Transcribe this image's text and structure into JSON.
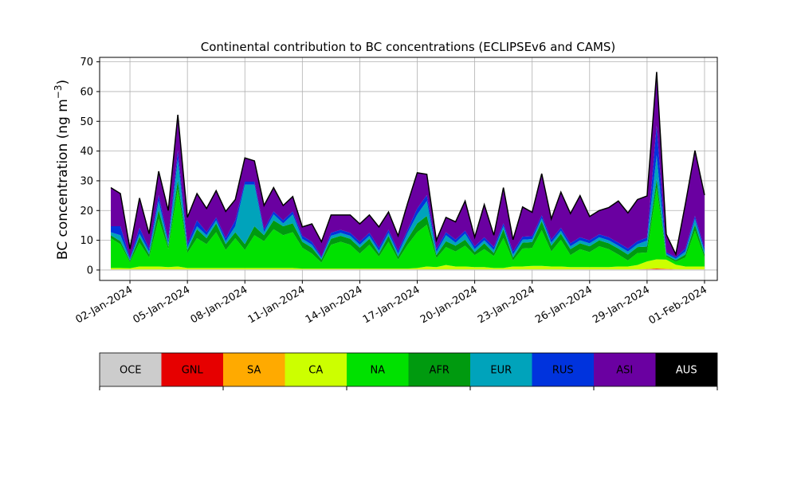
{
  "chart_data": {
    "type": "area",
    "title": "Continental contribution to BC concentrations (ECLIPSEv6 and CAMS)",
    "ylabel": "BC concentration (ng m",
    "ylabel_sup": "−3",
    "ylabel_close": ")",
    "xlabel": "",
    "ylim": [
      -3.5,
      71.5
    ],
    "xlim": [
      "2023-12-31T10:00",
      "2024-02-01T16:00"
    ],
    "grid": true,
    "stacked": true,
    "y_ticks": [
      0,
      10,
      20,
      30,
      40,
      50,
      60,
      70
    ],
    "x_ticks": [
      "2024-01-02",
      "2024-01-05",
      "2024-01-08",
      "2024-01-11",
      "2024-01-14",
      "2024-01-17",
      "2024-01-20",
      "2024-01-23",
      "2024-01-26",
      "2024-01-29",
      "2024-02-01"
    ],
    "x_tick_labels": [
      "02-Jan-2024",
      "05-Jan-2024",
      "08-Jan-2024",
      "11-Jan-2024",
      "14-Jan-2024",
      "17-Jan-2024",
      "20-Jan-2024",
      "23-Jan-2024",
      "26-Jan-2024",
      "29-Jan-2024",
      "01-Feb-2024"
    ],
    "legend": [
      {
        "name": "OCE",
        "color": "#cccccc",
        "text_color": "#000000"
      },
      {
        "name": "GNL",
        "color": "#e60000",
        "text_color": "#000000"
      },
      {
        "name": "SA",
        "color": "#ffaa00",
        "text_color": "#000000"
      },
      {
        "name": "CA",
        "color": "#ccff00",
        "text_color": "#000000"
      },
      {
        "name": "NA",
        "color": "#00e100",
        "text_color": "#000000"
      },
      {
        "name": "AFR",
        "color": "#009a0f",
        "text_color": "#000000"
      },
      {
        "name": "EUR",
        "color": "#00a3bb",
        "text_color": "#000000"
      },
      {
        "name": "RUS",
        "color": "#0033dd",
        "text_color": "#000000"
      },
      {
        "name": "ASI",
        "color": "#6a00a1",
        "text_color": "#000000"
      },
      {
        "name": "AUS",
        "color": "#000000",
        "text_color": "#ffffff"
      }
    ],
    "x": [
      "2024-01-01T00:00",
      "2024-01-01T12:00",
      "2024-01-02T00:00",
      "2024-01-02T12:00",
      "2024-01-03T00:00",
      "2024-01-03T12:00",
      "2024-01-04T00:00",
      "2024-01-04T12:00",
      "2024-01-05T00:00",
      "2024-01-05T12:00",
      "2024-01-06T00:00",
      "2024-01-06T12:00",
      "2024-01-07T00:00",
      "2024-01-07T12:00",
      "2024-01-08T00:00",
      "2024-01-08T12:00",
      "2024-01-09T00:00",
      "2024-01-09T12:00",
      "2024-01-10T00:00",
      "2024-01-10T12:00",
      "2024-01-11T00:00",
      "2024-01-11T12:00",
      "2024-01-12T00:00",
      "2024-01-12T12:00",
      "2024-01-13T00:00",
      "2024-01-13T12:00",
      "2024-01-14T00:00",
      "2024-01-14T12:00",
      "2024-01-15T00:00",
      "2024-01-15T12:00",
      "2024-01-16T00:00",
      "2024-01-16T12:00",
      "2024-01-17T00:00",
      "2024-01-17T12:00",
      "2024-01-18T00:00",
      "2024-01-18T12:00",
      "2024-01-19T00:00",
      "2024-01-19T12:00",
      "2024-01-20T00:00",
      "2024-01-20T12:00",
      "2024-01-21T00:00",
      "2024-01-21T12:00",
      "2024-01-22T00:00",
      "2024-01-22T12:00",
      "2024-01-23T00:00",
      "2024-01-23T12:00",
      "2024-01-24T00:00",
      "2024-01-24T12:00",
      "2024-01-25T00:00",
      "2024-01-25T12:00",
      "2024-01-26T00:00",
      "2024-01-26T12:00",
      "2024-01-27T00:00",
      "2024-01-27T12:00",
      "2024-01-28T00:00",
      "2024-01-28T12:00",
      "2024-01-29T00:00",
      "2024-01-29T12:00",
      "2024-01-30T00:00",
      "2024-01-30T12:00",
      "2024-01-31T00:00",
      "2024-01-31T12:00",
      "2024-02-01T00:00"
    ],
    "series": [
      {
        "name": "OCE",
        "color": "#cccccc",
        "values": [
          0.2,
          0.2,
          0.2,
          0.2,
          0.2,
          0.2,
          0.2,
          0.2,
          0.2,
          0.2,
          0.2,
          0.2,
          0.2,
          0.2,
          0.2,
          0.2,
          0.2,
          0.2,
          0.2,
          0.2,
          0.2,
          0.2,
          0.2,
          0.2,
          0.2,
          0.2,
          0.2,
          0.2,
          0.2,
          0.2,
          0.2,
          0.2,
          0.2,
          0.2,
          0.2,
          0.2,
          0.2,
          0.2,
          0.2,
          0.2,
          0.2,
          0.2,
          0.2,
          0.2,
          0.2,
          0.2,
          0.2,
          0.2,
          0.2,
          0.2,
          0.2,
          0.2,
          0.2,
          0.2,
          0.2,
          0.2,
          0.2,
          0.2,
          0.2,
          0.2,
          0.2,
          0.2,
          0.2
        ]
      },
      {
        "name": "GNL",
        "color": "#e60000",
        "values": [
          0,
          0,
          0,
          0,
          0,
          0,
          0,
          0,
          0,
          0,
          0,
          0,
          0,
          0,
          0,
          0,
          0,
          0,
          0,
          0,
          0,
          0,
          0,
          0,
          0,
          0,
          0,
          0,
          0,
          0,
          0,
          0,
          0,
          0,
          0,
          0,
          0,
          0,
          0,
          0,
          0,
          0,
          0,
          0,
          0,
          0,
          0,
          0,
          0,
          0,
          0,
          0,
          0,
          0,
          0,
          0,
          0.1,
          0.2,
          0.1,
          0,
          0,
          0,
          0
        ]
      },
      {
        "name": "SA",
        "color": "#ffaa00",
        "values": [
          0,
          0,
          0,
          0,
          0,
          0,
          0,
          0,
          0,
          0,
          0,
          0,
          0,
          0,
          0,
          0,
          0,
          0,
          0,
          0,
          0,
          0,
          0,
          0,
          0,
          0,
          0,
          0,
          0,
          0,
          0,
          0,
          0,
          0,
          0,
          0,
          0,
          0,
          0,
          0,
          0,
          0,
          0,
          0,
          0,
          0,
          0,
          0,
          0,
          0,
          0,
          0,
          0,
          0,
          0,
          0,
          0.1,
          0.2,
          0.2,
          0.1,
          0,
          0,
          0
        ]
      },
      {
        "name": "CA",
        "color": "#ccff00",
        "values": [
          0.5,
          0.5,
          0.4,
          1,
          1,
          1,
          0.8,
          1,
          0.5,
          0.5,
          0.5,
          0.5,
          0.5,
          0.5,
          0.5,
          0.5,
          0.5,
          0.5,
          0.5,
          0.5,
          0.3,
          0.3,
          0.3,
          0.3,
          0.3,
          0.3,
          0.3,
          0.3,
          0.3,
          0.3,
          0.3,
          0.3,
          0.5,
          1,
          0.8,
          1.5,
          1,
          1,
          0.8,
          0.8,
          0.5,
          0.5,
          1,
          1,
          1.2,
          1.2,
          1,
          1,
          0.8,
          0.8,
          0.8,
          0.8,
          0.8,
          1,
          1,
          1.5,
          2.5,
          3,
          3,
          1.5,
          1,
          1,
          1
        ]
      },
      {
        "name": "NA",
        "color": "#00e100",
        "values": [
          10,
          8,
          2,
          8,
          3,
          16,
          6,
          26,
          5,
          10,
          8,
          12,
          6,
          10,
          6,
          11,
          9,
          13,
          11,
          12,
          7,
          5,
          2,
          8,
          9,
          8,
          5,
          8,
          4,
          9,
          3,
          8,
          12,
          14,
          3,
          6,
          5,
          7,
          4,
          6,
          4,
          10,
          2,
          6,
          6,
          12,
          5,
          9,
          4,
          6,
          5,
          7,
          6,
          4,
          2,
          4,
          3,
          24,
          1,
          1,
          3,
          12,
          3
        ]
      },
      {
        "name": "AFR",
        "color": "#009a0f",
        "values": [
          1,
          1,
          0.5,
          2,
          1,
          3,
          1,
          3,
          1,
          3,
          2,
          3,
          2,
          2,
          2,
          3,
          2,
          3,
          3,
          3,
          2,
          2,
          1,
          2,
          2,
          2,
          2,
          2,
          1,
          2,
          1,
          2,
          3,
          3,
          1,
          2,
          2,
          2,
          1,
          2,
          1,
          3,
          1,
          2,
          2,
          3,
          2,
          2,
          2,
          2,
          2,
          2,
          2,
          2,
          2,
          2,
          2,
          3,
          0.5,
          0.5,
          1,
          2,
          1
        ]
      },
      {
        "name": "EUR",
        "color": "#00a3bb",
        "values": [
          1,
          2,
          0.5,
          1,
          1,
          3,
          1,
          7,
          1,
          1,
          1,
          1,
          1,
          2,
          20,
          14,
          1,
          2,
          1,
          3,
          1,
          1,
          0.5,
          1,
          1,
          1,
          1,
          1,
          1,
          1,
          1,
          2,
          3,
          5,
          1,
          2,
          1,
          2,
          1,
          1,
          1,
          1,
          1,
          1,
          1,
          1,
          1,
          1,
          1,
          1,
          1,
          1,
          1,
          1,
          1,
          1,
          2,
          8,
          0.5,
          0.5,
          1,
          2,
          1
        ]
      },
      {
        "name": "RUS",
        "color": "#0033dd",
        "values": [
          2,
          3,
          0.5,
          2,
          1,
          2,
          1,
          3,
          1,
          2,
          1,
          1,
          1,
          2,
          1,
          1,
          1,
          1,
          1,
          1,
          1,
          1,
          0.5,
          1,
          1,
          1,
          1,
          1,
          1,
          1,
          1,
          1,
          2,
          2,
          1,
          1,
          1,
          1,
          1,
          1,
          1,
          1,
          1,
          1,
          1,
          1,
          1,
          1,
          1,
          1,
          1,
          1,
          1,
          1,
          1,
          1,
          1,
          10,
          0.5,
          0.5,
          1,
          1,
          1
        ]
      },
      {
        "name": "ASI",
        "color": "#6a00a1",
        "values": [
          13,
          11,
          3,
          10,
          5,
          8,
          10,
          12,
          9,
          9,
          8,
          9,
          9,
          7,
          8,
          7,
          8,
          8,
          5,
          5,
          3,
          6,
          5,
          6,
          5,
          6,
          6,
          6,
          7,
          6,
          5,
          9,
          12,
          7,
          3,
          5,
          6,
          10,
          3,
          11,
          4,
          12,
          4,
          10,
          8,
          14,
          7,
          12,
          10,
          14,
          8,
          8,
          10,
          14,
          12,
          14,
          14,
          18,
          6,
          1,
          15,
          22,
          18
        ]
      },
      {
        "name": "AUS",
        "color": "#000000",
        "values": [
          0,
          0,
          0,
          0,
          0,
          0,
          0,
          0,
          0,
          0,
          0,
          0,
          0,
          0,
          0,
          0,
          0,
          0,
          0,
          0,
          0,
          0,
          0,
          0,
          0,
          0,
          0,
          0,
          0,
          0,
          0,
          0,
          0,
          0,
          0,
          0,
          0,
          0,
          0,
          0,
          0,
          0,
          0,
          0,
          0,
          0,
          0,
          0,
          0,
          0,
          0,
          0,
          0,
          0,
          0,
          0,
          0,
          0,
          0,
          0,
          0,
          0,
          0
        ]
      }
    ]
  }
}
